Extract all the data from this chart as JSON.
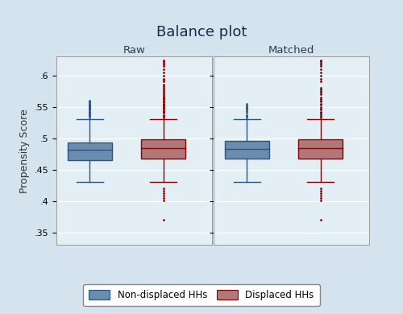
{
  "title": "Balance plot",
  "ylabel": "Propensity Score",
  "panels": [
    "Raw",
    "Matched"
  ],
  "ylim": [
    0.33,
    0.63
  ],
  "yticks": [
    0.35,
    0.4,
    0.45,
    0.5,
    0.55,
    0.6
  ],
  "ytick_labels": [
    ".35",
    ".4",
    ".45",
    ".5",
    ".55",
    ".6"
  ],
  "groups": [
    "Non-displaced HHs",
    "Displaced HHs"
  ],
  "box_colors": [
    "#6b8cad",
    "#b07878"
  ],
  "edge_colors": [
    "#2a5580",
    "#8b0000"
  ],
  "median_colors": [
    "#2a5580",
    "#8b0000"
  ],
  "outer_background": "#d4e3ee",
  "panel_background": "#e4eef5",
  "raw": {
    "non_displaced": {
      "q1": 0.465,
      "median": 0.481,
      "q3": 0.493,
      "whisker_low": 0.43,
      "whisker_high": 0.53,
      "outliers_high": [
        0.533,
        0.535,
        0.537,
        0.538,
        0.54,
        0.541,
        0.542,
        0.543,
        0.545,
        0.546,
        0.547,
        0.548,
        0.549,
        0.55,
        0.551,
        0.552,
        0.553,
        0.554,
        0.555,
        0.557,
        0.558,
        0.56
      ],
      "outliers_low": []
    },
    "displaced": {
      "q1": 0.468,
      "median": 0.484,
      "q3": 0.498,
      "whisker_low": 0.43,
      "whisker_high": 0.53,
      "outliers_high": [
        0.533,
        0.535,
        0.537,
        0.54,
        0.542,
        0.543,
        0.545,
        0.547,
        0.549,
        0.55,
        0.552,
        0.553,
        0.555,
        0.557,
        0.558,
        0.56,
        0.562,
        0.563,
        0.565,
        0.567,
        0.57,
        0.572,
        0.575,
        0.578,
        0.58,
        0.583,
        0.585,
        0.59,
        0.593,
        0.595,
        0.6,
        0.605,
        0.61,
        0.615,
        0.618,
        0.62,
        0.622,
        0.624
      ],
      "outliers_low": [
        0.42,
        0.416,
        0.412,
        0.408,
        0.404,
        0.401,
        0.37
      ]
    }
  },
  "matched": {
    "non_displaced": {
      "q1": 0.467,
      "median": 0.483,
      "q3": 0.496,
      "whisker_low": 0.43,
      "whisker_high": 0.53,
      "outliers_high": [
        0.533,
        0.535,
        0.537,
        0.54,
        0.543,
        0.545,
        0.547,
        0.549,
        0.55,
        0.552,
        0.555
      ],
      "outliers_low": []
    },
    "displaced": {
      "q1": 0.468,
      "median": 0.484,
      "q3": 0.498,
      "whisker_low": 0.43,
      "whisker_high": 0.53,
      "outliers_high": [
        0.533,
        0.535,
        0.538,
        0.54,
        0.542,
        0.545,
        0.547,
        0.55,
        0.553,
        0.555,
        0.558,
        0.56,
        0.562,
        0.565,
        0.57,
        0.572,
        0.575,
        0.578,
        0.58,
        0.59,
        0.595,
        0.6,
        0.605,
        0.61,
        0.615,
        0.618,
        0.62,
        0.622,
        0.624
      ],
      "outliers_low": [
        0.42,
        0.416,
        0.412,
        0.408,
        0.404,
        0.401,
        0.37
      ]
    }
  }
}
